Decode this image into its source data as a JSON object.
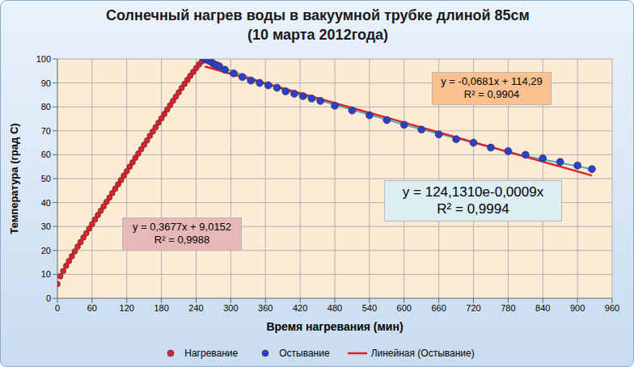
{
  "chart_data": {
    "type": "scatter",
    "title": "Солнечный нагрев воды в вакуумной трубке длиной 85см",
    "subtitle": "(10 марта 2012года)",
    "x_label": "Время нагревания (мин)",
    "y_label": "Температура (град С)",
    "xlim": [
      0,
      960
    ],
    "xticks": [
      0,
      60,
      120,
      180,
      240,
      300,
      360,
      420,
      480,
      540,
      600,
      660,
      720,
      780,
      840,
      900,
      960
    ],
    "ylim": [
      0,
      100
    ],
    "yticks": [
      0,
      10,
      20,
      30,
      40,
      50,
      60,
      70,
      80,
      90,
      100
    ],
    "grid": true,
    "legend": "bottom",
    "series": [
      {
        "name": "Нагревание",
        "type": "scatter",
        "marker": "circle",
        "color": "#e0202a",
        "x": [
          0,
          5,
          10,
          15,
          20,
          25,
          30,
          35,
          40,
          45,
          50,
          55,
          60,
          65,
          70,
          75,
          80,
          85,
          90,
          95,
          100,
          105,
          110,
          115,
          120,
          125,
          130,
          135,
          140,
          145,
          150,
          155,
          160,
          165,
          170,
          175,
          180,
          185,
          190,
          195,
          200,
          205,
          210,
          215,
          220,
          225,
          230,
          235,
          240,
          245,
          250,
          255
        ],
        "values": [
          6,
          9.2,
          11.4,
          13.6,
          15.6,
          17.6,
          19.6,
          21.6,
          23.5,
          25.4,
          27.2,
          29.1,
          31,
          32.9,
          34.8,
          36.6,
          38.4,
          40.3,
          42.1,
          44,
          45.8,
          47.6,
          49.4,
          51.3,
          53.1,
          55,
          56.8,
          58.7,
          60.5,
          62.3,
          64.2,
          66,
          67.9,
          69.7,
          71.5,
          73.4,
          75.2,
          77,
          78.9,
          80.7,
          82.5,
          84.3,
          86.1,
          87.9,
          89.6,
          91.3,
          93,
          94.6,
          96.2,
          97.7,
          99,
          100
        ]
      },
      {
        "name": "Остывание",
        "type": "scatter",
        "marker": "circle",
        "color": "#2c3fc9",
        "x": [
          255,
          260,
          265,
          270,
          275,
          280,
          290,
          305,
          320,
          335,
          350,
          365,
          380,
          395,
          410,
          425,
          440,
          455,
          480,
          510,
          540,
          570,
          600,
          630,
          660,
          690,
          720,
          750,
          780,
          810,
          840,
          870,
          900,
          925
        ],
        "values": [
          100,
          99.5,
          99,
          98,
          97.5,
          97,
          95.5,
          94,
          92.5,
          91,
          90,
          89,
          88,
          86.5,
          85.5,
          84.5,
          83.5,
          82.5,
          80.5,
          78.5,
          76.5,
          74.5,
          72.5,
          70.5,
          68.5,
          66.5,
          65,
          63,
          61.5,
          60,
          58.5,
          57,
          55.5,
          54
        ]
      },
      {
        "type": "line",
        "line_style": "solid",
        "color": "#4bacc6",
        "x": [
          255,
          400,
          600,
          800,
          925
        ],
        "values": [
          99,
          86.5,
          72.5,
          60,
          54
        ]
      },
      {
        "name": "Линейная (Остывание)",
        "type": "line",
        "line_style": "solid",
        "color": "#e0202a",
        "x": [
          255,
          925
        ],
        "values": [
          96.9,
          51.3
        ]
      }
    ],
    "annotations": [
      {
        "text": [
          "y = 0,3677x + 9,0152",
          "R² = 0,9988"
        ],
        "color": "#e6b9b8"
      },
      {
        "text": [
          "y = -0,0681x + 114,29",
          "R² = 0,9904"
        ],
        "color": "#fac090"
      },
      {
        "text": [
          "y = 124,1310e-0,0009x",
          "R² = 0,9994"
        ],
        "color": "#dbeef4"
      }
    ]
  }
}
